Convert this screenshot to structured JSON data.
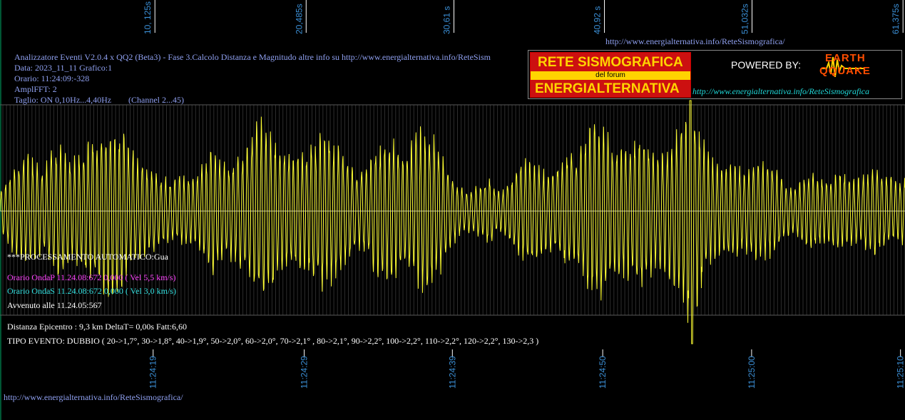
{
  "header": {
    "url_top": "http://www.energialternativa.info/ReteSismografica/",
    "analyzer_line": "Analizzatore Eventi V2.0.4 x QQ2 (Beta3) - Fase 3.Calcolo Distanza e Magnitudo altre info su http://www.energialternativa.info/ReteSism",
    "data_line": "Data: 2023_11_11 Grafico:1",
    "orario_line": "Orario: 11:24:09:-328",
    "ampl_line": "AmplFFT: 2",
    "taglio_line": "Taglio: ON 0,10Hz...4,40Hz",
    "channel_line": "(Channel 2...45)"
  },
  "logo": {
    "line1": "RETE SISMOGRAFICA",
    "line2": "del forum",
    "line3": "ENERGIALTERNATIVA",
    "powered": "POWERED BY:",
    "brand1": "EARTH",
    "brand2": "QQUAKE",
    "url": "http://www.energialternativa.info/ReteSismografica"
  },
  "processing": {
    "auto_line": "***PROCESSAMENTO AUTOMATICO:Gua",
    "onda_p": "Orario OndaP 11.24.08:672  0,000 ( Vel 5,5 km/s)",
    "onda_s": "Orario OndaS 11.24.08:672  0,000 ( Vel 3,0 km/s)",
    "avvenuto": "Avvenuto alle 11.24.05:567",
    "distanza": "Distanza Epicentro : 9,3 km DeltaT= 0,00s  Fatt:6,60",
    "tipo_evento": "TIPO EVENTO: DUBBIO ( 20->1,7°, 30->1,8°, 40->1,9°, 50->2,0°, 60->2,0°, 70->2,1° , 80->2,1°, 90->2,2°, 100->2,2°, 110->2,2°, 120->2,2°, 130->2,3 )"
  },
  "footer": {
    "url_bottom": "http://www.energialternativa.info/ReteSismografica/"
  },
  "colors": {
    "trace": "#ffff33",
    "grid": "#5a5a5a",
    "tick_labels": "#3b8fd6",
    "text_blue": "#8fa0f0",
    "magenta": "#ff44ff",
    "cyan": "#33e0e0"
  },
  "chart_data": {
    "type": "line",
    "top_ticks": [
      "10, 125s",
      "20,485s",
      "30,61 s",
      "40,92 s",
      "51,032s",
      "61,375s"
    ],
    "top_tick_labels": [
      "10, 125s",
      "20,485s",
      "30,61 s",
      "40,92 s",
      "51,032s",
      "61,375s"
    ],
    "bottom_tick_labels": [
      "11:24:19",
      "11:24:29",
      "11:24:39",
      "11:24:50",
      "11:25:00",
      "11:25:10"
    ],
    "x_range_s": [
      0,
      62
    ],
    "top_tick_values_s": [
      10.125,
      20.485,
      30.61,
      40.92,
      51.032,
      61.375
    ],
    "bottom_tick_values_s": [
      10.1,
      20.45,
      30.6,
      40.9,
      51.1,
      61.3
    ],
    "y_range": [
      -1,
      1
    ],
    "grid": true,
    "series": [
      {
        "name": "",
        "x": [
          0,
          0.5,
          1,
          1.5,
          2,
          2.5,
          3,
          3.5,
          4,
          4.5,
          5,
          5.5,
          6,
          6.5,
          7,
          7.5,
          8,
          8.5,
          9,
          9.5,
          10,
          10.5,
          11,
          11.5,
          12,
          12.5,
          13,
          13.5,
          14,
          14.5,
          15,
          15.5,
          16,
          16.5,
          17,
          17.5,
          18,
          18.5,
          19,
          19.5,
          20,
          20.5,
          21,
          21.5,
          22,
          22.5,
          23,
          23.5,
          24,
          24.5,
          25,
          25.5,
          26,
          26.5,
          27,
          27.5,
          28,
          28.5,
          29,
          29.5,
          30,
          30.5,
          31,
          31.5,
          32,
          32.5,
          33,
          33.5,
          34,
          34.5,
          35,
          35.5,
          36,
          36.5,
          37,
          37.5,
          38,
          38.5,
          39,
          39.5,
          40,
          40.5,
          41,
          41.5,
          42,
          42.5,
          43,
          43.5,
          44,
          44.5,
          45,
          45.5,
          46,
          46.5,
          47,
          47.5,
          48,
          48.5,
          49,
          49.5,
          50,
          50.5,
          51,
          51.5,
          52,
          52.5,
          53,
          53.5,
          54,
          54.5,
          55,
          55.5,
          56,
          56.5,
          57,
          57.5,
          58,
          58.5,
          59,
          59.5,
          60,
          60.5,
          61,
          61.5,
          62
        ],
        "envelope": [
          0.2,
          0.28,
          0.4,
          0.45,
          0.5,
          0.42,
          0.38,
          0.55,
          0.6,
          0.5,
          0.45,
          0.55,
          0.62,
          0.6,
          0.72,
          0.78,
          0.75,
          0.65,
          0.55,
          0.45,
          0.4,
          0.35,
          0.3,
          0.3,
          0.28,
          0.3,
          0.3,
          0.35,
          0.42,
          0.55,
          0.48,
          0.42,
          0.45,
          0.5,
          0.6,
          0.75,
          0.8,
          0.7,
          0.6,
          0.55,
          0.5,
          0.5,
          0.55,
          0.62,
          0.68,
          0.7,
          0.6,
          0.5,
          0.42,
          0.35,
          0.35,
          0.5,
          0.58,
          0.62,
          0.6,
          0.55,
          0.55,
          0.65,
          0.75,
          0.7,
          0.6,
          0.45,
          0.3,
          0.22,
          0.18,
          0.2,
          0.25,
          0.3,
          0.2,
          0.2,
          0.28,
          0.4,
          0.48,
          0.45,
          0.4,
          0.35,
          0.35,
          0.45,
          0.52,
          0.5,
          0.62,
          0.78,
          0.8,
          0.72,
          0.6,
          0.55,
          0.62,
          0.68,
          0.7,
          0.6,
          0.5,
          0.55,
          0.6,
          0.72,
          0.95,
          1.0,
          0.7,
          0.5,
          0.42,
          0.4,
          0.42,
          0.4,
          0.35,
          0.4,
          0.45,
          0.42,
          0.38,
          0.3,
          0.22,
          0.2,
          0.3,
          0.35,
          0.3,
          0.28,
          0.3,
          0.35,
          0.32,
          0.28,
          0.3,
          0.35,
          0.38,
          0.35,
          0.3,
          0.25,
          0.3
        ]
      }
    ],
    "frequency_hz": 3.2
  }
}
